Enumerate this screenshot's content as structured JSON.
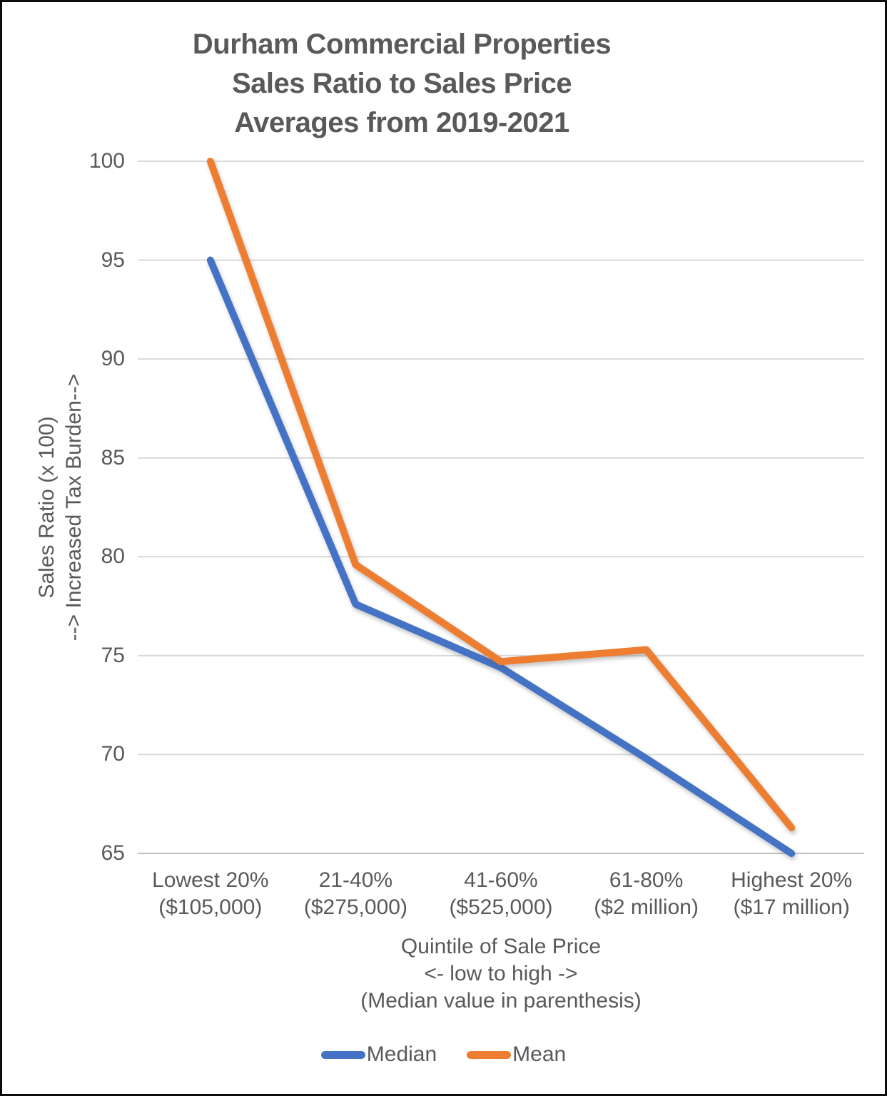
{
  "chart_data": {
    "type": "line",
    "title_lines": [
      "Durham Commercial Properties",
      "Sales Ratio to Sales Price",
      "Averages from 2019-2021"
    ],
    "categories": [
      "Lowest 20%\n($105,000)",
      "21-40%\n($275,000)",
      "41-60%\n($525,000)",
      "61-80%\n($2 million)",
      "Highest 20%\n($17 million)"
    ],
    "series": [
      {
        "name": "Median",
        "color": "#4472C4",
        "values": [
          95,
          77.6,
          74.4,
          69.8,
          65
        ]
      },
      {
        "name": "Mean",
        "color": "#ED7D31",
        "values": [
          100,
          79.6,
          74.7,
          75.3,
          66.3
        ]
      }
    ],
    "ylabel_lines": [
      "Sales Ratio (x 100)",
      "--> Increased Tax Burden-->"
    ],
    "xlabel_lines": [
      "Quintile of Sale Price",
      "<- low to high ->",
      "(Median value in parenthesis)"
    ],
    "yticks": [
      65,
      70,
      75,
      80,
      85,
      90,
      95,
      100
    ],
    "ylim": [
      65,
      100
    ],
    "grid": true,
    "legend_position": "bottom",
    "colors": {
      "text": "#595959",
      "gridline": "#D9D9D9",
      "axis_line": "#BFBFBF"
    }
  }
}
